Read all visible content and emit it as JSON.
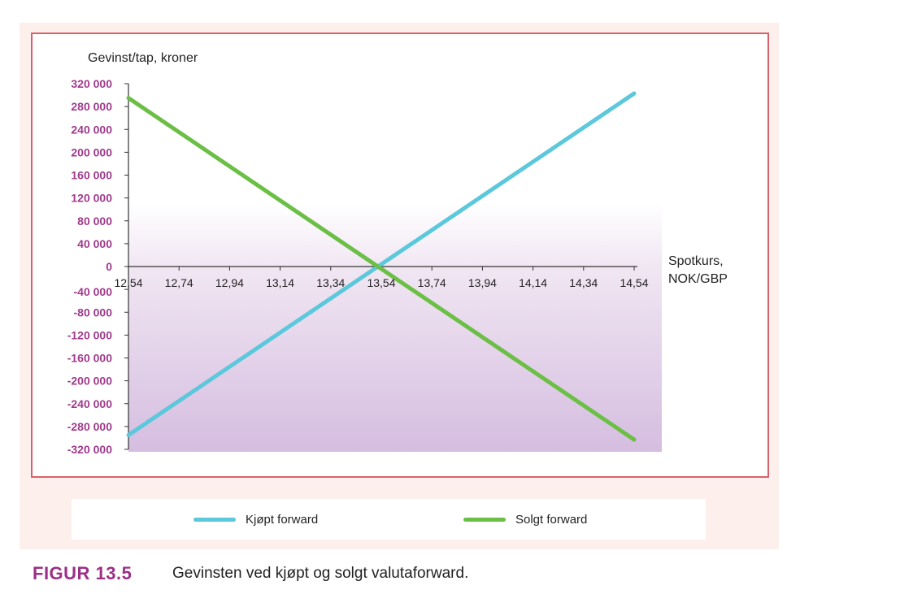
{
  "colors": {
    "kjopt": "#5bc8db",
    "solgt": "#6bbf45",
    "ytick": "#a03a8c",
    "caption": "#9c2f86",
    "frame": "#d9606a"
  },
  "caption": {
    "label": "FIGUR 13.5",
    "text": "Gevinsten ved kjøpt og solgt valutaforward."
  },
  "chart_data": {
    "type": "line",
    "ylabel": "Gevinst/tap, kroner",
    "xlabel_line1": "Spotkurs,",
    "xlabel_line2": "NOK/GBP",
    "xlim": [
      12.54,
      14.54
    ],
    "ylim": [
      -320000,
      320000
    ],
    "x_ticks": [
      12.54,
      12.74,
      12.94,
      13.14,
      13.34,
      13.54,
      13.74,
      13.94,
      14.14,
      14.34,
      14.54
    ],
    "x_tick_labels": [
      "12,54",
      "12,74",
      "12,94",
      "13,14",
      "13,34",
      "13,54",
      "13,74",
      "13,94",
      "14,14",
      "14,34",
      "14,54"
    ],
    "y_ticks": [
      320000,
      280000,
      240000,
      200000,
      160000,
      120000,
      80000,
      40000,
      0,
      -40000,
      -80000,
      -120000,
      -160000,
      -200000,
      -240000,
      -280000,
      -320000
    ],
    "y_tick_labels": [
      "320 000",
      "280 000",
      "240 000",
      "200 000",
      "160 000",
      "120 000",
      "80 000",
      "40 000",
      "0",
      "-40 000",
      "-80 000",
      "-120 000",
      "-160 000",
      "-200 000",
      "-240 000",
      "-280 000",
      "-320 000"
    ],
    "grid": false,
    "legend_position": "bottom",
    "series": [
      {
        "name": "Kjøpt forward",
        "x": [
          12.54,
          14.54
        ],
        "y": [
          -295000,
          303000
        ]
      },
      {
        "name": "Solgt forward",
        "x": [
          12.54,
          14.54
        ],
        "y": [
          295000,
          -303000
        ]
      }
    ]
  }
}
